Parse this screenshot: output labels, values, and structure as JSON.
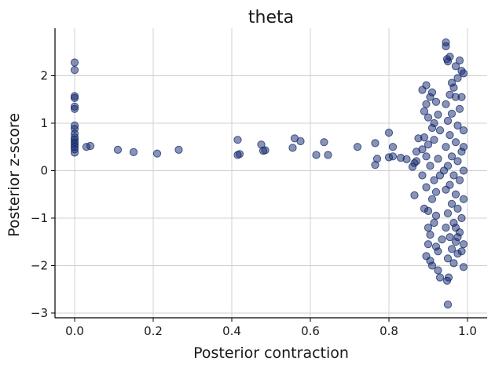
{
  "chart_data": {
    "type": "scatter",
    "title": "theta",
    "xlabel": "Posterior contraction",
    "ylabel": "Posterior z-score",
    "xlim": [
      -0.05,
      1.05
    ],
    "ylim": [
      -3.1,
      3.0
    ],
    "xticks": [
      0.0,
      0.2,
      0.4,
      0.6,
      0.8,
      1.0
    ],
    "xtick_labels": [
      "0.0",
      "0.2",
      "0.4",
      "0.6",
      "0.8",
      "1.0"
    ],
    "yticks": [
      -3,
      -2,
      -1,
      0,
      1,
      2
    ],
    "ytick_labels": [
      "−3",
      "−2",
      "−1",
      "0",
      "1",
      "2"
    ],
    "grid": true,
    "marker_color": "#13286b",
    "marker_alpha": 0.5,
    "points": [
      [
        0.0,
        2.28
      ],
      [
        0.0,
        2.12
      ],
      [
        0.0,
        1.57
      ],
      [
        0.0,
        1.53
      ],
      [
        0.0,
        1.35
      ],
      [
        0.0,
        1.3
      ],
      [
        0.0,
        0.95
      ],
      [
        0.0,
        0.88
      ],
      [
        0.0,
        0.78
      ],
      [
        0.0,
        0.7
      ],
      [
        0.0,
        0.65
      ],
      [
        0.0,
        0.6
      ],
      [
        0.0,
        0.55
      ],
      [
        0.0,
        0.5
      ],
      [
        0.0,
        0.45
      ],
      [
        0.0,
        0.38
      ],
      [
        0.03,
        0.5
      ],
      [
        0.04,
        0.52
      ],
      [
        0.11,
        0.44
      ],
      [
        0.15,
        0.39
      ],
      [
        0.21,
        0.36
      ],
      [
        0.265,
        0.44
      ],
      [
        0.415,
        0.33
      ],
      [
        0.42,
        0.35
      ],
      [
        0.415,
        0.65
      ],
      [
        0.475,
        0.55
      ],
      [
        0.48,
        0.42
      ],
      [
        0.485,
        0.43
      ],
      [
        0.555,
        0.48
      ],
      [
        0.56,
        0.68
      ],
      [
        0.575,
        0.62
      ],
      [
        0.615,
        0.33
      ],
      [
        0.635,
        0.6
      ],
      [
        0.645,
        0.33
      ],
      [
        0.72,
        0.5
      ],
      [
        0.765,
        0.58
      ],
      [
        0.765,
        0.12
      ],
      [
        0.77,
        0.25
      ],
      [
        0.8,
        0.8
      ],
      [
        0.8,
        0.28
      ],
      [
        0.81,
        0.5
      ],
      [
        0.81,
        0.3
      ],
      [
        0.83,
        0.27
      ],
      [
        0.845,
        0.24
      ],
      [
        0.86,
        0.08
      ],
      [
        0.865,
        0.16
      ],
      [
        0.865,
        -0.52
      ],
      [
        0.87,
        0.4
      ],
      [
        0.87,
        0.2
      ],
      [
        0.875,
        0.68
      ],
      [
        0.885,
        1.7
      ],
      [
        0.89,
        1.25
      ],
      [
        0.895,
        1.8
      ],
      [
        0.9,
        1.12
      ],
      [
        0.905,
        1.55
      ],
      [
        0.91,
        1.65
      ],
      [
        0.915,
        1.0
      ],
      [
        0.92,
        1.45
      ],
      [
        0.925,
        1.18
      ],
      [
        0.91,
        0.9
      ],
      [
        0.89,
        0.7
      ],
      [
        0.9,
        0.55
      ],
      [
        0.895,
        0.3
      ],
      [
        0.905,
        0.1
      ],
      [
        0.885,
        -0.1
      ],
      [
        0.895,
        -0.35
      ],
      [
        0.91,
        -0.6
      ],
      [
        0.9,
        -0.85
      ],
      [
        0.915,
        -1.1
      ],
      [
        0.905,
        -1.35
      ],
      [
        0.92,
        -1.6
      ],
      [
        0.895,
        -1.8
      ],
      [
        0.91,
        -2.0
      ],
      [
        0.925,
        -2.1
      ],
      [
        0.93,
        -2.25
      ],
      [
        0.9,
        -1.2
      ],
      [
        0.915,
        -0.2
      ],
      [
        0.925,
        0.25
      ],
      [
        0.885,
        0.45
      ],
      [
        0.92,
        -0.45
      ],
      [
        0.93,
        0.85
      ],
      [
        0.935,
        -1.45
      ],
      [
        0.9,
        -1.55
      ],
      [
        0.89,
        -0.8
      ],
      [
        0.915,
        0.65
      ],
      [
        0.92,
        -0.95
      ],
      [
        0.895,
        1.4
      ],
      [
        0.93,
        -0.1
      ],
      [
        0.905,
        -1.9
      ],
      [
        0.925,
        -1.7
      ],
      [
        0.945,
        2.7
      ],
      [
        0.945,
        2.62
      ],
      [
        0.955,
        2.4
      ],
      [
        0.948,
        2.35
      ],
      [
        0.95,
        2.3
      ],
      [
        0.97,
        2.2
      ],
      [
        0.975,
        1.95
      ],
      [
        0.98,
        2.32
      ],
      [
        0.985,
        2.1
      ],
      [
        0.99,
        2.05
      ],
      [
        0.96,
        1.85
      ],
      [
        0.965,
        1.75
      ],
      [
        0.955,
        1.6
      ],
      [
        0.97,
        1.55
      ],
      [
        0.945,
        1.4
      ],
      [
        0.98,
        1.3
      ],
      [
        0.96,
        1.2
      ],
      [
        0.95,
        1.05
      ],
      [
        0.975,
        0.95
      ],
      [
        0.99,
        0.85
      ],
      [
        0.955,
        0.75
      ],
      [
        0.97,
        0.6
      ],
      [
        0.945,
        0.5
      ],
      [
        0.985,
        0.4
      ],
      [
        0.96,
        0.3
      ],
      [
        0.975,
        0.2
      ],
      [
        0.95,
        0.1
      ],
      [
        0.99,
        0.0
      ],
      [
        0.965,
        -0.1
      ],
      [
        0.98,
        -0.2
      ],
      [
        0.955,
        -0.3
      ],
      [
        0.945,
        -0.4
      ],
      [
        0.97,
        -0.5
      ],
      [
        0.99,
        -0.6
      ],
      [
        0.96,
        -0.7
      ],
      [
        0.975,
        -0.8
      ],
      [
        0.95,
        -0.9
      ],
      [
        0.985,
        -1.0
      ],
      [
        0.965,
        -1.1
      ],
      [
        0.945,
        -1.2
      ],
      [
        0.98,
        -1.3
      ],
      [
        0.955,
        -1.4
      ],
      [
        0.97,
        -1.5
      ],
      [
        0.99,
        -1.55
      ],
      [
        0.96,
        -1.65
      ],
      [
        0.975,
        -1.75
      ],
      [
        0.95,
        -1.85
      ],
      [
        0.985,
        -1.7
      ],
      [
        0.965,
        -1.95
      ],
      [
        0.99,
        -2.03
      ],
      [
        0.952,
        -2.25
      ],
      [
        0.948,
        -2.32
      ],
      [
        0.95,
        -2.82
      ],
      [
        0.97,
        -1.2
      ],
      [
        0.99,
        0.5
      ],
      [
        0.94,
        0.0
      ],
      [
        0.985,
        1.55
      ],
      [
        0.975,
        -1.4
      ]
    ]
  }
}
